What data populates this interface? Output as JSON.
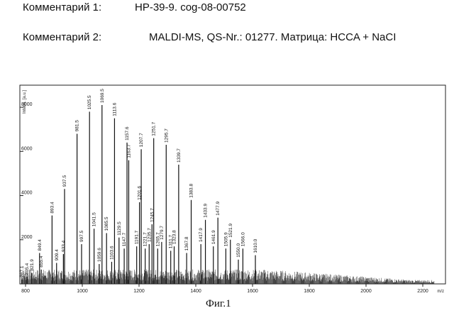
{
  "header": {
    "comment1_label": "Комментарий 1:",
    "comment1_value": "HP-39-9. cog-08-00752",
    "comment2_label": "Комментарий 2:",
    "comment2_value": "MALDI-MS, QS-Nr.: 01277. Матрица: HCCA + NaCI"
  },
  "caption": "Фиг.1",
  "chart_data": {
    "type": "line",
    "title": "",
    "xlabel": "m/z",
    "ylabel": "Intens. [a.u.]",
    "xlim": [
      780,
      2280
    ],
    "ylim": [
      0,
      9000
    ],
    "grid": false,
    "legend": "none",
    "xticks": [
      800,
      1000,
      1200,
      1400,
      1600,
      1800,
      2000,
      2200
    ],
    "xtick_labels": [
      "800",
      "1000",
      "1200",
      "1400",
      "1600",
      "1800",
      "2000",
      "2200"
    ],
    "yticks": [
      2000,
      4000,
      6000,
      8000
    ],
    "ytick_labels": [
      "2000",
      "4000",
      "6000",
      "8000"
    ],
    "peaks": [
      {
        "mz": 787.0,
        "intensity": 200,
        "label": "787.1"
      },
      {
        "mz": 805.4,
        "intensity": 320,
        "label": "805.4"
      },
      {
        "mz": 821.9,
        "intensity": 500,
        "label": "821.9"
      },
      {
        "mz": 855.4,
        "intensity": 650,
        "label": "855.4"
      },
      {
        "mz": 849.4,
        "intensity": 1400,
        "label": "849.4"
      },
      {
        "mz": 893.4,
        "intensity": 3100,
        "label": "893.4"
      },
      {
        "mz": 909.4,
        "intensity": 950,
        "label": "909.4"
      },
      {
        "mz": 933.4,
        "intensity": 1350,
        "label": "933.4"
      },
      {
        "mz": 937.5,
        "intensity": 4300,
        "label": "937.5"
      },
      {
        "mz": 981.5,
        "intensity": 6800,
        "label": "981.5"
      },
      {
        "mz": 997.5,
        "intensity": 1800,
        "label": "997.5"
      },
      {
        "mz": 1025.5,
        "intensity": 7800,
        "label": "1025.5"
      },
      {
        "mz": 1041.5,
        "intensity": 2500,
        "label": "1041.5"
      },
      {
        "mz": 1059.6,
        "intensity": 900,
        "label": "1059.6"
      },
      {
        "mz": 1069.5,
        "intensity": 8100,
        "label": "1069.5"
      },
      {
        "mz": 1085.5,
        "intensity": 2300,
        "label": "1085.5"
      },
      {
        "mz": 1103.6,
        "intensity": 1000,
        "label": "1103.6"
      },
      {
        "mz": 1113.6,
        "intensity": 7500,
        "label": "1113.6"
      },
      {
        "mz": 1129.5,
        "intensity": 2100,
        "label": "1129.5"
      },
      {
        "mz": 1147.7,
        "intensity": 1600,
        "label": "1147.7"
      },
      {
        "mz": 1157.6,
        "intensity": 6400,
        "label": "1157.6"
      },
      {
        "mz": 1163.7,
        "intensity": 5600,
        "label": "1163.7"
      },
      {
        "mz": 1191.7,
        "intensity": 1700,
        "label": "1191.7"
      },
      {
        "mz": 1201.6,
        "intensity": 3700,
        "label": "1201.6"
      },
      {
        "mz": 1207.7,
        "intensity": 6100,
        "label": "1207.7"
      },
      {
        "mz": 1221.7,
        "intensity": 1600,
        "label": "1221.7"
      },
      {
        "mz": 1235.7,
        "intensity": 1800,
        "label": "1235.7"
      },
      {
        "mz": 1245.7,
        "intensity": 2700,
        "label": "1245.7"
      },
      {
        "mz": 1251.7,
        "intensity": 6600,
        "label": "1251.7"
      },
      {
        "mz": 1265.7,
        "intensity": 1600,
        "label": "1265.7"
      },
      {
        "mz": 1279.7,
        "intensity": 1900,
        "label": "1279.7"
      },
      {
        "mz": 1295.7,
        "intensity": 6300,
        "label": "1295.7"
      },
      {
        "mz": 1311.7,
        "intensity": 1500,
        "label": "1311.7"
      },
      {
        "mz": 1323.8,
        "intensity": 1700,
        "label": "1323.8"
      },
      {
        "mz": 1339.7,
        "intensity": 5400,
        "label": "1339.7"
      },
      {
        "mz": 1367.8,
        "intensity": 1400,
        "label": "1367.8"
      },
      {
        "mz": 1383.8,
        "intensity": 3800,
        "label": "1383.8"
      },
      {
        "mz": 1417.9,
        "intensity": 1800,
        "label": "1417.9"
      },
      {
        "mz": 1433.9,
        "intensity": 2900,
        "label": "1433.9"
      },
      {
        "mz": 1461.9,
        "intensity": 1700,
        "label": "1461.9"
      },
      {
        "mz": 1477.9,
        "intensity": 3000,
        "label": "1477.9"
      },
      {
        "mz": 1505.9,
        "intensity": 1600,
        "label": "1505.9"
      },
      {
        "mz": 1521.9,
        "intensity": 2000,
        "label": "1521.9"
      },
      {
        "mz": 1550.0,
        "intensity": 1100,
        "label": "1550.0"
      },
      {
        "mz": 1566.0,
        "intensity": 1600,
        "label": "1566.0"
      },
      {
        "mz": 1610.0,
        "intensity": 1300,
        "label": "1610.0"
      }
    ]
  }
}
